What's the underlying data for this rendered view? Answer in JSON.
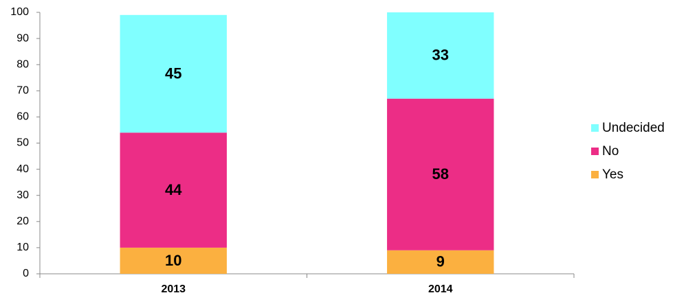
{
  "chart_data": {
    "type": "stacked-bar",
    "categories": [
      "2013",
      "2014"
    ],
    "series": [
      {
        "name": "Yes",
        "color": "#fbb040",
        "values": [
          10,
          9
        ]
      },
      {
        "name": "No",
        "color": "#ec2d86",
        "values": [
          44,
          58
        ]
      },
      {
        "name": "Undecided",
        "color": "#80ffff",
        "values": [
          45,
          33
        ]
      }
    ],
    "ylim": [
      0,
      100
    ],
    "yticks": [
      0,
      10,
      20,
      30,
      40,
      50,
      60,
      70,
      80,
      90,
      100
    ],
    "grid": false,
    "legend": "right"
  }
}
